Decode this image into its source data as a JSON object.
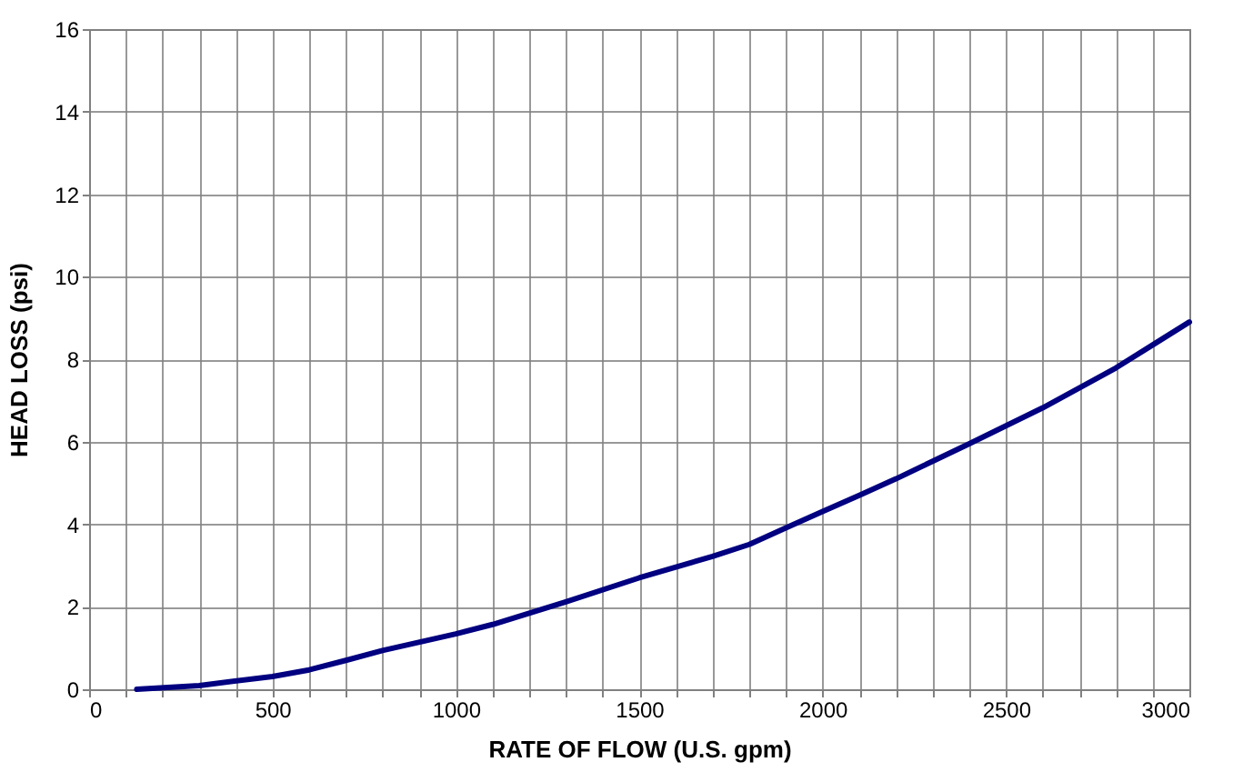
{
  "chart_data": {
    "type": "line",
    "xlabel": "RATE OF FLOW (U.S. gpm)",
    "ylabel": "HEAD LOSS (psi)",
    "x": [
      130,
      300,
      500,
      600,
      700,
      800,
      1000,
      1100,
      1300,
      1500,
      1700,
      1800,
      1900,
      2000,
      2100,
      2200,
      2400,
      2600,
      2800,
      3000
    ],
    "series": [
      {
        "color": "#000080",
        "values": [
          0,
          0.09,
          0.31,
          0.47,
          0.7,
          0.94,
          1.34,
          1.57,
          2.12,
          2.7,
          3.22,
          3.51,
          3.91,
          4.31,
          4.7,
          5.1,
          5.95,
          6.82,
          7.79,
          8.9
        ]
      }
    ],
    "xlim": [
      0,
      3000
    ],
    "xticks": [
      0,
      {
        "value": 100,
        "label": null
      },
      {
        "value": 200,
        "label": null
      },
      {
        "value": 300,
        "label": null
      },
      {
        "value": 400,
        "label": null
      },
      500,
      {
        "value": 600,
        "label": null
      },
      {
        "value": 700,
        "label": null
      },
      {
        "value": 800,
        "label": null
      },
      {
        "value": 900,
        "label": null
      },
      1000,
      {
        "value": 1100,
        "label": null
      },
      {
        "value": 1200,
        "label": null
      },
      {
        "value": 1300,
        "label": null
      },
      {
        "value": 1400,
        "label": null
      },
      1500,
      {
        "value": 1600,
        "label": null
      },
      {
        "value": 1700,
        "label": null
      },
      {
        "value": 1800,
        "label": null
      },
      {
        "value": 1900,
        "label": null
      },
      2000,
      {
        "value": 2100,
        "label": null
      },
      {
        "value": 2200,
        "label": null
      },
      {
        "value": 2300,
        "label": null
      },
      {
        "value": 2400,
        "label": null
      },
      2500,
      {
        "value": 2600,
        "label": null
      },
      {
        "value": 2700,
        "label": null
      },
      {
        "value": 2800,
        "label": null
      },
      {
        "value": 2900,
        "label": null
      },
      3000
    ],
    "ylim": [
      0,
      16
    ],
    "yticks": [
      0,
      2,
      4,
      6,
      8,
      10,
      12,
      14,
      16
    ],
    "grid": true,
    "marker": "none",
    "line_style": "solid"
  }
}
